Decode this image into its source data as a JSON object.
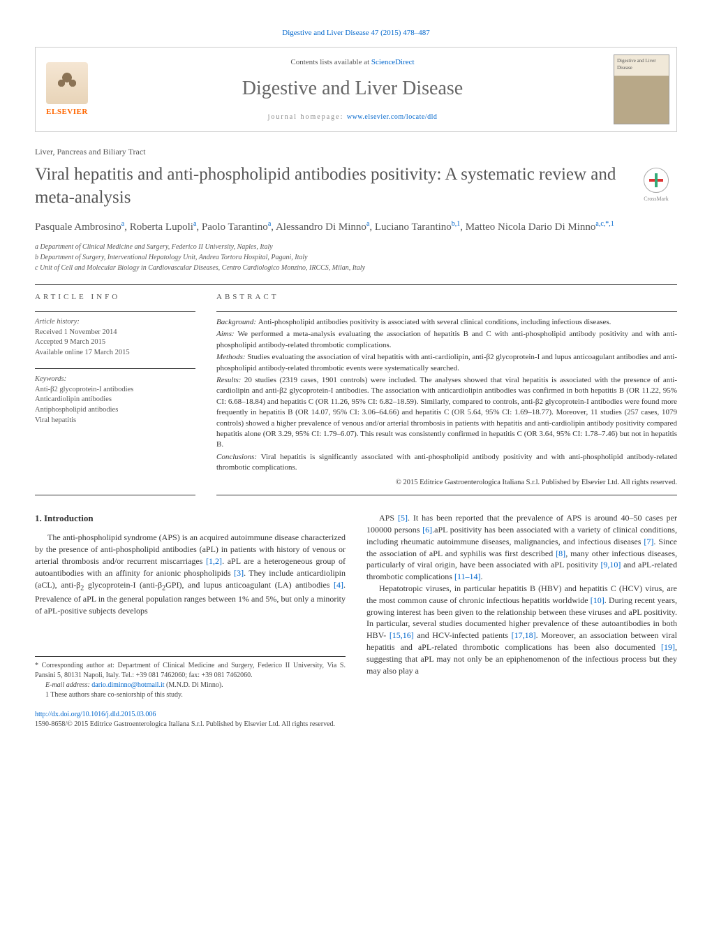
{
  "journal_ref": "Digestive and Liver Disease 47 (2015) 478–487",
  "header": {
    "contents_prefix": "Contents lists available at ",
    "contents_link": "ScienceDirect",
    "journal_name": "Digestive and Liver Disease",
    "homepage_prefix": "journal homepage: ",
    "homepage_url": "www.elsevier.com/locate/dld",
    "publisher": "ELSEVIER",
    "cover_text": "Digestive and Liver Disease"
  },
  "section_label": "Liver, Pancreas and Biliary Tract",
  "title": "Viral hepatitis and anti-phospholipid antibodies positivity: A systematic review and meta-analysis",
  "crossmark_label": "CrossMark",
  "authors_html": "Pasquale Ambrosino<sup>a</sup>, Roberta Lupoli<sup>a</sup>, Paolo Tarantino<sup>a</sup>, Alessandro Di Minno<sup>a</sup>, Luciano Tarantino<sup>b,1</sup>, Matteo Nicola Dario Di Minno<sup>a,c,*,1</sup>",
  "affiliations": [
    "a Department of Clinical Medicine and Surgery, Federico II University, Naples, Italy",
    "b Department of Surgery, Interventional Hepatology Unit, Andrea Tortora Hospital, Pagani, Italy",
    "c Unit of Cell and Molecular Biology in Cardiovascular Diseases, Centro Cardiologico Monzino, IRCCS, Milan, Italy"
  ],
  "article_info": {
    "heading": "article info",
    "history_label": "Article history:",
    "received": "Received 1 November 2014",
    "accepted": "Accepted 9 March 2015",
    "online": "Available online 17 March 2015",
    "keywords_label": "Keywords:",
    "keywords": [
      "Anti-β2 glycoprotein-I antibodies",
      "Anticardiolipin antibodies",
      "Antiphospholipid antibodies",
      "Viral hepatitis"
    ]
  },
  "abstract": {
    "heading": "abstract",
    "background": "Anti-phospholipid antibodies positivity is associated with several clinical conditions, including infectious diseases.",
    "aims": "We performed a meta-analysis evaluating the association of hepatitis B and C with anti-phospholipid antibody positivity and with anti-phospholipid antibody-related thrombotic complications.",
    "methods": "Studies evaluating the association of viral hepatitis with anti-cardiolipin, anti-β2 glycoprotein-I and lupus anticoagulant antibodies and anti-phospholipid antibody-related thrombotic events were systematically searched.",
    "results": "20 studies (2319 cases, 1901 controls) were included. The analyses showed that viral hepatitis is associated with the presence of anti-cardiolipin and anti-β2 glycoprotein-I antibodies. The association with anticardiolipin antibodies was confirmed in both hepatitis B (OR 11.22, 95% CI: 6.68–18.84) and hepatitis C (OR 11.26, 95% CI: 6.82–18.59). Similarly, compared to controls, anti-β2 glycoprotein-I antibodies were found more frequently in hepatitis B (OR 14.07, 95% CI: 3.06–64.66) and hepatitis C (OR 5.64, 95% CI: 1.69–18.77). Moreover, 11 studies (257 cases, 1079 controls) showed a higher prevalence of venous and/or arterial thrombosis in patients with hepatitis and anti-cardiolipin antibody positivity compared hepatitis alone (OR 3.29, 95% CI: 1.79–6.07). This result was consistently confirmed in hepatitis C (OR 3.64, 95% CI: 1.78–7.46) but not in hepatitis B.",
    "conclusions": "Viral hepatitis is significantly associated with anti-phospholipid antibody positivity and with anti-phospholipid antibody-related thrombotic complications.",
    "copyright": "© 2015 Editrice Gastroenterologica Italiana S.r.l. Published by Elsevier Ltd. All rights reserved."
  },
  "body": {
    "intro_heading": "1. Introduction",
    "col1_p1": "The anti-phospholipid syndrome (APS) is an acquired autoimmune disease characterized by the presence of anti-phospholipid antibodies (aPL) in patients with history of venous or arterial thrombosis and/or recurrent miscarriages <span class=\"cite\">[1,2]</span>. aPL are a heterogeneous group of autoantibodies with an affinity for anionic phospholipids <span class=\"cite\">[3]</span>. They include anticardiolipin (aCL), anti-β<sub>2</sub> glycoprotein-I (anti-β<sub>2</sub>GPI), and lupus anticoagulant (LA) antibodies <span class=\"cite\">[4]</span>. Prevalence of aPL in the general population ranges between 1% and 5%, but only a minority of aPL-positive subjects develops",
    "col2_p1": "APS <span class=\"cite\">[5]</span>. It has been reported that the prevalence of APS is around 40–50 cases per 100000 persons <span class=\"cite\">[6]</span>.aPL positivity has been associated with a variety of clinical conditions, including rheumatic autoimmune diseases, malignancies, and infectious diseases <span class=\"cite\">[7]</span>. Since the association of aPL and syphilis was first described <span class=\"cite\">[8]</span>, many other infectious diseases, particularly of viral origin, have been associated with aPL positivity <span class=\"cite\">[9,10]</span> and aPL-related thrombotic complications <span class=\"cite\">[11–14]</span>.",
    "col2_p2": "Hepatotropic viruses, in particular hepatitis B (HBV) and hepatitis C (HCV) virus, are the most common cause of chronic infectious hepatitis worldwide <span class=\"cite\">[10]</span>. During recent years, growing interest has been given to the relationship between these viruses and aPL positivity. In particular, several studies documented higher prevalence of these autoantibodies in both HBV- <span class=\"cite\">[15,16]</span> and HCV-infected patients <span class=\"cite\">[17,18]</span>. Moreover, an association between viral hepatitis and aPL-related thrombotic complications has been also documented <span class=\"cite\">[19]</span>, suggesting that aPL may not only be an epiphenomenon of the infectious process but they may also play a"
  },
  "footnotes": {
    "corr": "* Corresponding author at: Department of Clinical Medicine and Surgery, Federico II University, Via S. Pansini 5, 80131 Napoli, Italy. Tel.: +39 081 7462060; fax: +39 081 7462060.",
    "email_label": "E-mail address: ",
    "email": "dario.diminno@hotmail.it",
    "email_suffix": " (M.N.D. Di Minno).",
    "coauthor": "1 These authors share co-seniorship of this study."
  },
  "doi": "http://dx.doi.org/10.1016/j.dld.2015.03.006",
  "issn": "1590-8658/© 2015 Editrice Gastroenterologica Italiana S.r.l. Published by Elsevier Ltd. All rights reserved.",
  "colors": {
    "link": "#0066cc",
    "orange": "#ff6600",
    "text_gray": "#555555"
  }
}
